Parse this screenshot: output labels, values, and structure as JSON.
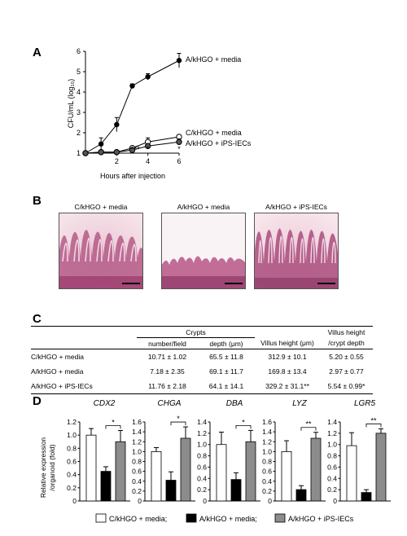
{
  "panels": {
    "a": "A",
    "b": "B",
    "c": "C",
    "d": "D"
  },
  "panel_a": {
    "ylabel": "CFU/mL (log₁₀)",
    "xlabel": "Hours after injection",
    "chart_data": {
      "type": "line",
      "xlabel": "Hours after injection",
      "ylabel": "CFU/mL (log10)",
      "xlim": [
        0,
        6
      ],
      "ylim": [
        1,
        6
      ],
      "x_ticks": [
        2,
        4,
        6
      ],
      "y_ticks": [
        1,
        2,
        3,
        4,
        5,
        6
      ],
      "series": [
        {
          "name": "A/kHGO + media",
          "x": [
            0,
            1,
            2,
            3,
            4,
            6
          ],
          "y": [
            1.0,
            1.45,
            2.4,
            4.3,
            4.75,
            5.55
          ],
          "err": [
            0.05,
            0.3,
            0.35,
            0.1,
            0.15,
            0.35
          ],
          "marker": "filled-circle"
        },
        {
          "name": "C/kHGO + media",
          "x": [
            0,
            1,
            2,
            3,
            4,
            6
          ],
          "y": [
            1.0,
            1.05,
            1.05,
            1.25,
            1.55,
            1.8
          ],
          "err": [
            0.05,
            0.05,
            0.05,
            0.08,
            0.2,
            0.1
          ],
          "marker": "open-circle"
        },
        {
          "name": "A/kHGO + iPS-IECs",
          "x": [
            0,
            1,
            2,
            3,
            4,
            6
          ],
          "y": [
            1.0,
            1.05,
            1.05,
            1.15,
            1.35,
            1.55
          ],
          "err": [
            0.05,
            0.05,
            0.05,
            0.05,
            0.1,
            0.15
          ],
          "marker": "half-circle"
        }
      ],
      "annotations": [
        {
          "x": 3,
          "text": "*"
        },
        {
          "x": 3.3,
          "text": "**"
        },
        {
          "x": 4,
          "text": "*"
        },
        {
          "x": 6,
          "text": "*"
        }
      ]
    }
  },
  "panel_b": {
    "images": [
      {
        "label": "C/kHGO + media"
      },
      {
        "label": "A/kHGO + media"
      },
      {
        "label": "A/kHGO + iPS-IECs"
      }
    ]
  },
  "panel_c": {
    "headers": {
      "crypts": "Crypts",
      "number_per_field": "number/field",
      "depth": "depth (μm)",
      "villus_height": "Villus  height (μm)",
      "ratio_line1": "Villus  height",
      "ratio_line2": "/crypt depth"
    },
    "rows": [
      {
        "group": "C/kHGO + media",
        "number": "10.71 ±  1.02",
        "depth": "65.5 ± 11.8",
        "villus": "312.9 ± 10.1",
        "ratio": "5.20 ± 0.55"
      },
      {
        "group": "A/kHGO + media",
        "number": "7.18 ±  2.35",
        "depth": "69.1 ± 11.7",
        "villus": "169.8 ± 13.4",
        "ratio": "2.97 ± 0.77"
      },
      {
        "group": "A/kHGO + iPS-IECs",
        "number": "11.76 ±  2.18",
        "depth": "64.1 ± 14.1",
        "villus": "329.2 ± 31.1**",
        "ratio": "5.54 ± 0.99*"
      }
    ]
  },
  "panel_d": {
    "ylabel_line1": "Relative expression",
    "ylabel_line2": "/organoid (fold)",
    "legend": [
      "C/kHGO + media;",
      "A/kHGO + media;",
      "A/kHGO + iPS-IECs"
    ],
    "colors": {
      "c_media": "#ffffff",
      "a_media": "#000000",
      "a_ips": "#8c8c8c"
    },
    "chart_data": [
      {
        "type": "bar",
        "title": "CDX2",
        "ylim": [
          0,
          1.2
        ],
        "yticks": [
          "0",
          "0.2",
          "0.4",
          "0.6",
          "0.8",
          "1.0",
          "1.2"
        ],
        "categories": [
          "C/kHGO + media",
          "A/kHGO + media",
          "A/kHGO + iPS-IECs"
        ],
        "values": [
          1.0,
          0.45,
          0.9
        ],
        "errors": [
          0.1,
          0.07,
          0.17
        ],
        "significance": "*"
      },
      {
        "type": "bar",
        "title": "CHGA",
        "ylim": [
          0,
          1.6
        ],
        "yticks": [
          "0",
          "0.2",
          "0.4",
          "0.6",
          "0.8",
          "1.0",
          "1.2",
          "1.4",
          "1.6"
        ],
        "categories": [
          "C/kHGO + media",
          "A/kHGO + media",
          "A/kHGO + iPS-IECs"
        ],
        "values": [
          1.0,
          0.42,
          1.27
        ],
        "errors": [
          0.08,
          0.17,
          0.23
        ],
        "significance": "*"
      },
      {
        "type": "bar",
        "title": "DBA",
        "ylim": [
          0,
          1.4
        ],
        "yticks": [
          "0",
          "0.2",
          "0.4",
          "0.6",
          "0.8",
          "1.0",
          "1.2",
          "1.4"
        ],
        "categories": [
          "C/kHGO + media",
          "A/kHGO + media",
          "A/kHGO + iPS-IECs"
        ],
        "values": [
          1.0,
          0.38,
          1.05
        ],
        "errors": [
          0.22,
          0.12,
          0.2
        ],
        "significance": "*"
      },
      {
        "type": "bar",
        "title": "LYZ",
        "ylim": [
          0,
          1.6
        ],
        "yticks": [
          "0",
          "0.2",
          "0.4",
          "0.6",
          "0.8",
          "1.0",
          "1.2",
          "1.4",
          "1.6"
        ],
        "categories": [
          "C/kHGO + media",
          "A/kHGO + media",
          "A/kHGO + iPS-IECs"
        ],
        "values": [
          1.0,
          0.23,
          1.27
        ],
        "errors": [
          0.22,
          0.08,
          0.12
        ],
        "significance": "**"
      },
      {
        "type": "bar",
        "title": "LGR5",
        "ylim": [
          0,
          1.4
        ],
        "yticks": [
          "0",
          "0.2",
          "0.4",
          "0.6",
          "0.8",
          "1.0",
          "1.2",
          "1.4"
        ],
        "categories": [
          "C/kHGO + media",
          "A/kHGO + media",
          "A/kHGO + iPS-IECs"
        ],
        "values": [
          0.98,
          0.15,
          1.2
        ],
        "errors": [
          0.23,
          0.05,
          0.08
        ],
        "significance": "**"
      }
    ]
  }
}
